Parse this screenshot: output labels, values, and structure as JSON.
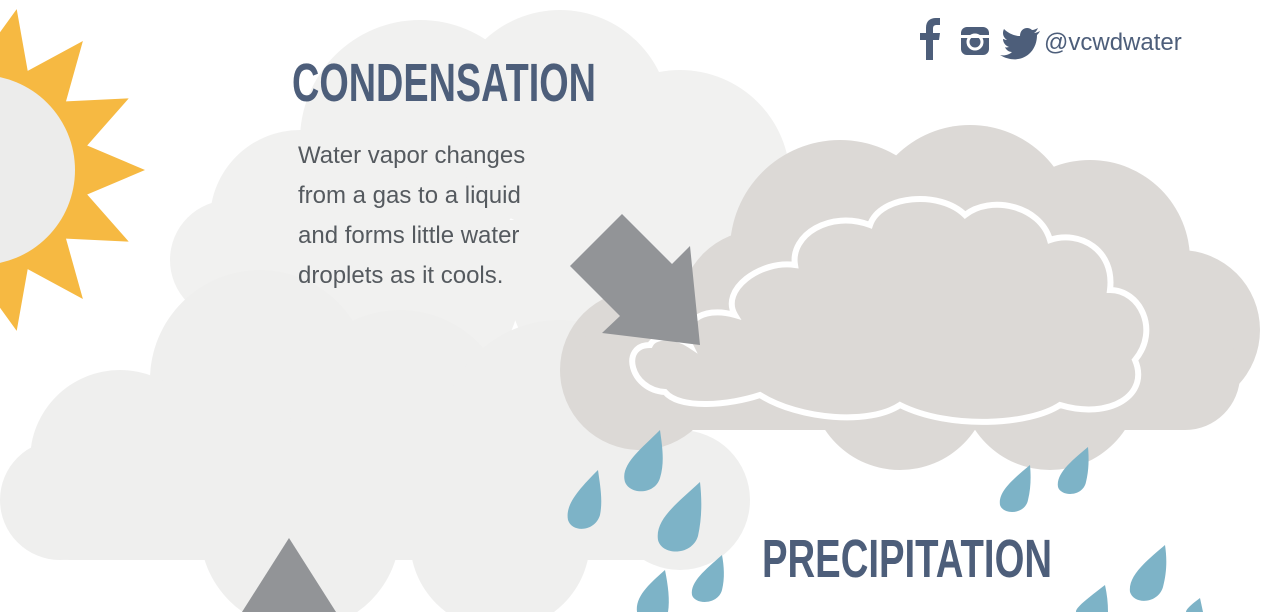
{
  "condensation": {
    "title": "CONDENSATION",
    "lines": [
      "Water vapor changes",
      "from a gas to a liquid",
      "and forms little water",
      "droplets as it cools."
    ]
  },
  "precipitation": {
    "title": "PRECIPITATION"
  },
  "social": {
    "handle": "@vcwdwater"
  }
}
